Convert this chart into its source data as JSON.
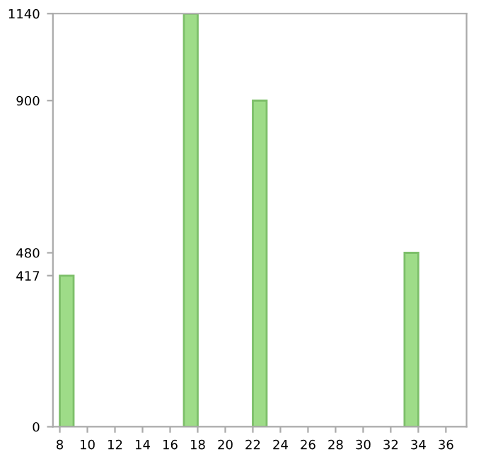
{
  "chart_data": {
    "type": "bar",
    "x": [
      8.5,
      17.5,
      22.5,
      33.5
    ],
    "values": [
      417,
      1140,
      900,
      480
    ],
    "color": "#9edc88",
    "xlim": [
      7.5,
      37.5
    ],
    "xticks": [
      8,
      10,
      12,
      14,
      16,
      18,
      20,
      22,
      24,
      26,
      28,
      30,
      32,
      34,
      36
    ],
    "ylim": [
      0,
      1140
    ],
    "yticks": [
      0,
      417,
      480,
      900,
      1140
    ],
    "grid": false
  }
}
